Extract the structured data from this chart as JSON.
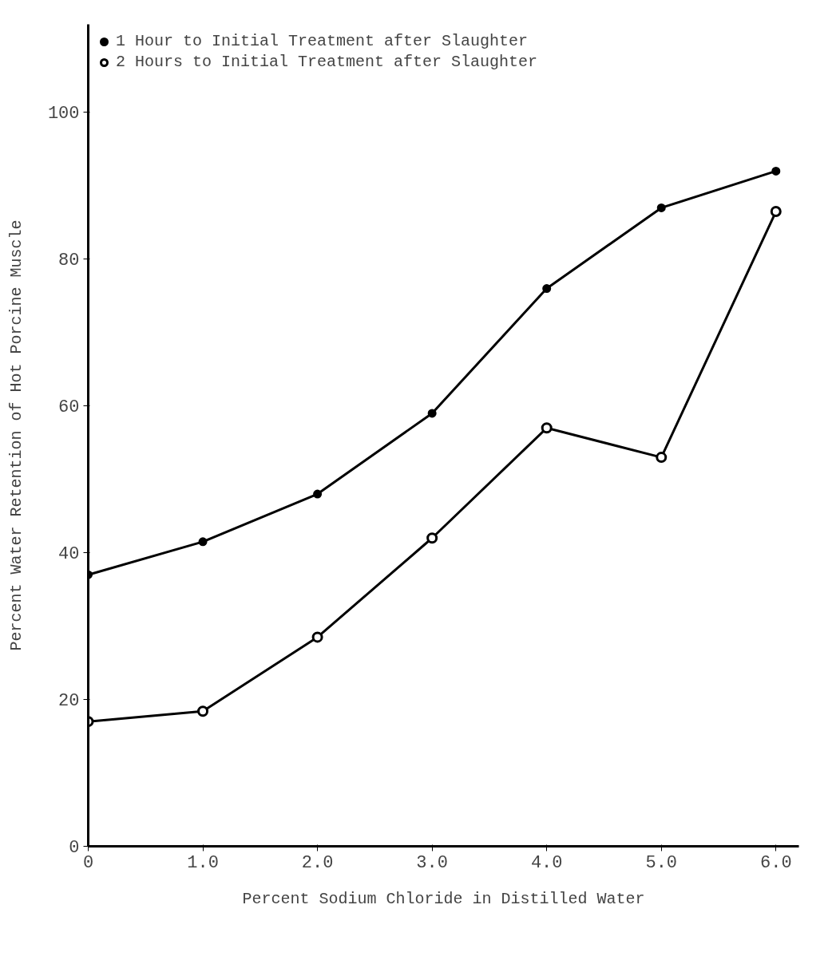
{
  "chart_data": {
    "type": "line",
    "xlabel": "Percent Sodium Chloride in Distilled Water",
    "ylabel": "Percent Water Retention of Hot Porcine Muscle",
    "x": [
      0,
      1,
      2,
      3,
      4,
      5,
      6
    ],
    "series": [
      {
        "name": "1 Hour to Initial Treatment after Slaughter",
        "color": "#000000",
        "values": [
          37,
          41.5,
          48,
          59,
          76,
          87,
          92
        ]
      },
      {
        "name": "2 Hours to Initial Treatment after Slaughter",
        "color": "#000000",
        "values": [
          17,
          18.4,
          28.5,
          42,
          57,
          53,
          86.5
        ]
      }
    ],
    "xlim": [
      0,
      6.2
    ],
    "ylim": [
      0,
      112
    ],
    "xticks": [
      0,
      {
        "value": 1,
        "label": "1.0"
      },
      {
        "value": 2,
        "label": "2.0"
      },
      {
        "value": 3,
        "label": "3.0"
      },
      {
        "value": 4,
        "label": "4.0"
      },
      {
        "value": 5,
        "label": "5.0"
      },
      {
        "value": 6,
        "label": "6.0"
      }
    ],
    "yticks": [
      0,
      20,
      40,
      60,
      80,
      100
    ],
    "grid": false,
    "legend": "top left",
    "marker": "circle",
    "line_style": "solid"
  }
}
